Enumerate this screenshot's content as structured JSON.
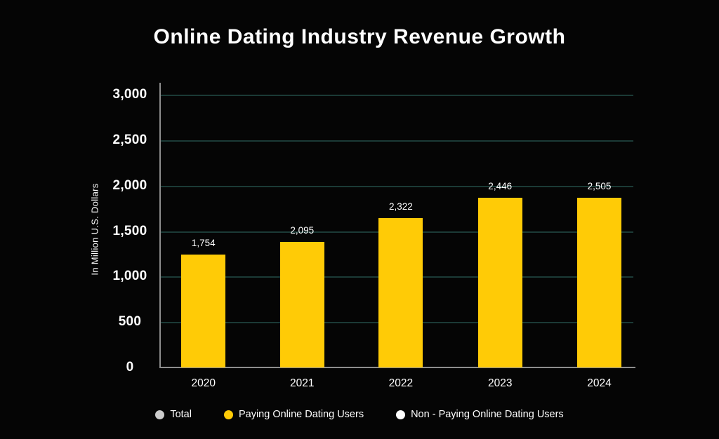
{
  "title": "Online Dating Industry Revenue Growth",
  "chart_data": {
    "type": "bar",
    "categories": [
      "2020",
      "2021",
      "2022",
      "2023",
      "2024"
    ],
    "values": [
      1754,
      2095,
      2322,
      2446,
      2505
    ],
    "value_labels": [
      "1,754",
      "2,095",
      "2,322",
      "2,446",
      "2,505"
    ],
    "display_values": [
      1245,
      1380,
      1640,
      1870,
      1870
    ],
    "ylabel": "In Million U.S. Dollars",
    "ylim": [
      0,
      3000
    ],
    "ytick_labels": [
      "3,000",
      "2,500",
      "2,000",
      "1,500",
      "1,000",
      "500",
      "0"
    ],
    "grid": true,
    "legend_position": "bottom",
    "colors": {
      "bar": "#ffcb06",
      "grid": "#1b3a36",
      "axis": "#8e8e8e",
      "background": "#050505",
      "text": "#ffffff"
    },
    "legend": [
      {
        "label": "Total",
        "color": "#cccccc"
      },
      {
        "label": "Paying Online Dating Users",
        "color": "#ffcb06"
      },
      {
        "label": "Non - Paying Online Dating Users",
        "color": "#ffffff"
      }
    ]
  }
}
